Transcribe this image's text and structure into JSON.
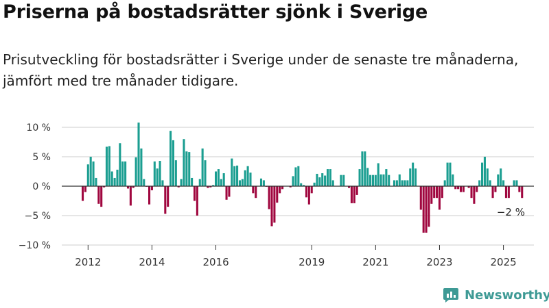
{
  "title": "Priserna på bostadsrätter sjönk i Sverige",
  "subtitle": "Prisutveckling för bostadsrätter i Sverige under de senaste tre månaderna, jämfört med tre månader tidigare.",
  "brand": {
    "name": "Newsworthy",
    "icon": "bar-chart-logo-icon",
    "color": "#3e9a95"
  },
  "colors": {
    "positive": "#1b9e91",
    "negative": "#a0073f",
    "grid": "#cccccc",
    "zero_line": "#333333"
  },
  "chart_data": {
    "type": "bar",
    "grid": true,
    "legend": "none",
    "title": "",
    "xlabel": "",
    "ylabel": "",
    "ylim": [
      -10,
      10
    ],
    "y_ticks": [
      {
        "value": 10,
        "label": "10 %"
      },
      {
        "value": 5,
        "label": "5 %"
      },
      {
        "value": 0,
        "label": "0 %"
      },
      {
        "value": -5,
        "label": "−5 %"
      },
      {
        "value": -10,
        "label": "−10 %"
      }
    ],
    "x_ticks": [
      "2012",
      "2014",
      "2016",
      "2019",
      "2021",
      "2023",
      "2025"
    ],
    "first_month": "2011-11",
    "last_value_label": "−2 %",
    "values": [
      -2.5,
      -1.0,
      3.7,
      5.0,
      4.2,
      1.4,
      -3.0,
      -3.5,
      -0.2,
      6.7,
      6.8,
      2.5,
      1.4,
      2.8,
      7.3,
      4.2,
      4.2,
      -0.4,
      -3.3,
      -0.3,
      4.9,
      10.8,
      6.4,
      1.2,
      -0.1,
      -3.1,
      -0.7,
      4.2,
      3.0,
      4.3,
      1.0,
      -4.7,
      -3.5,
      9.4,
      7.8,
      4.4,
      -0.2,
      1.2,
      8.0,
      5.9,
      5.8,
      1.4,
      -2.5,
      -5.0,
      1.2,
      6.4,
      4.4,
      -0.3,
      -0.2,
      0.2,
      2.5,
      2.9,
      1.2,
      2.2,
      -2.3,
      -1.8,
      4.7,
      3.4,
      3.5,
      1.0,
      1.2,
      2.7,
      3.4,
      2.3,
      -1.2,
      -2.0,
      0.0,
      1.3,
      1.0,
      -0.1,
      -3.9,
      -6.8,
      -6.2,
      -2.8,
      -1.2,
      -0.5,
      0.0,
      0.0,
      -0.2,
      1.7,
      3.2,
      3.4,
      0.5,
      0.2,
      -1.9,
      -3.1,
      -1.2,
      0.6,
      2.1,
      1.5,
      2.2,
      1.8,
      2.9,
      2.9,
      1.0,
      0.0,
      0.0,
      1.9,
      1.9,
      0.0,
      -0.3,
      -2.9,
      -2.9,
      -1.5,
      2.9,
      5.9,
      5.9,
      3.1,
      1.9,
      1.9,
      1.9,
      3.9,
      2.0,
      2.0,
      2.9,
      1.9,
      0.0,
      1.0,
      1.0,
      2.0,
      1.0,
      1.0,
      1.0,
      3.0,
      4.0,
      3.0,
      0.0,
      -4.0,
      -7.9,
      -7.9,
      -6.9,
      -3.0,
      -2.0,
      -2.0,
      -4.0,
      -2.0,
      1.0,
      4.0,
      4.0,
      2.0,
      -0.5,
      -0.5,
      -1.0,
      -1.0,
      0.0,
      -0.3,
      -2.0,
      -3.0,
      -1.0,
      1.0,
      4.0,
      5.0,
      3.0,
      1.0,
      -2.0,
      -1.0,
      2.0,
      3.0,
      1.0,
      -2.0,
      -2.0,
      0.0,
      1.0,
      1.0,
      -1.0,
      -2.0
    ]
  }
}
